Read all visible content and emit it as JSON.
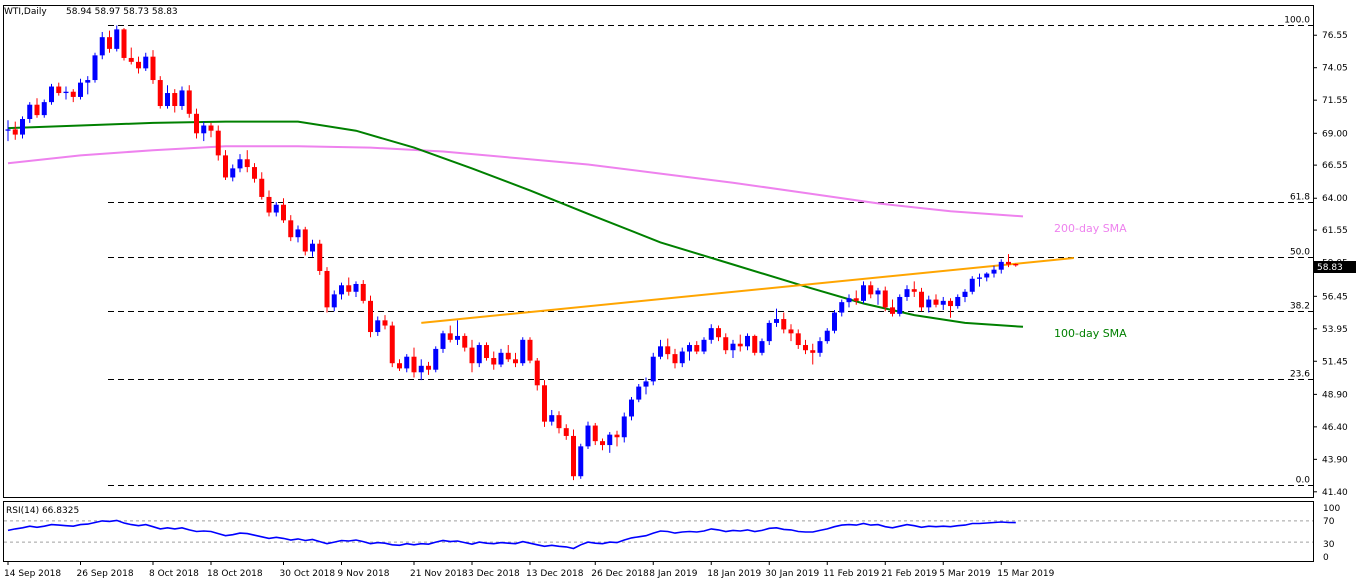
{
  "header": {
    "symbol": "WTI,Daily",
    "ohlc": "58.94 58.97 58.73 58.83"
  },
  "current_price": "58.83",
  "rsi_panel": {
    "title": "RSI(14) 66.8325",
    "levels": [
      100,
      70,
      30,
      0
    ],
    "level_labels": [
      "100",
      "70",
      "30",
      "0"
    ]
  },
  "fib_labels": {
    "f100": "100.0",
    "f618": "61.8",
    "f500": "50.0",
    "f382": "38.2",
    "f236": "23.6",
    "f000": "0.0"
  },
  "sma_labels": {
    "sma200": "200-day SMA",
    "sma100": "100-day SMA"
  },
  "chart_data": {
    "type": "candlestick",
    "price_axis_ticks": [
      76.55,
      74.05,
      71.55,
      69.0,
      66.55,
      64.0,
      61.55,
      59.05,
      56.45,
      53.95,
      51.45,
      48.9,
      46.4,
      43.9,
      41.4
    ],
    "price_axis_labels": [
      "76.55",
      "74.05",
      "71.55",
      "69.00",
      "66.55",
      "64.00",
      "61.55",
      "59.05",
      "56.45",
      "53.95",
      "51.45",
      "48.90",
      "46.40",
      "43.90",
      "41.40"
    ],
    "ylim": [
      41.0,
      78.8
    ],
    "date_labels": [
      {
        "i": 0,
        "label": "14 Sep 2018"
      },
      {
        "i": 10,
        "label": "26 Sep 2018"
      },
      {
        "i": 20,
        "label": "8 Oct 2018"
      },
      {
        "i": 28,
        "label": "18 Oct 2018"
      },
      {
        "i": 38,
        "label": "30 Oct 2018"
      },
      {
        "i": 46,
        "label": "9 Nov 2018"
      },
      {
        "i": 56,
        "label": "21 Nov 2018"
      },
      {
        "i": 64,
        "label": "3 Dec 2018"
      },
      {
        "i": 72,
        "label": "13 Dec 2018"
      },
      {
        "i": 81,
        "label": "26 Dec 2018"
      },
      {
        "i": 89,
        "label": "8 Jan 2019"
      },
      {
        "i": 97,
        "label": "18 Jan 2019"
      },
      {
        "i": 105,
        "label": "30 Jan 2019"
      },
      {
        "i": 113,
        "label": "11 Feb 2019"
      },
      {
        "i": 121,
        "label": "21 Feb 2019"
      },
      {
        "i": 129,
        "label": "5 Mar 2019"
      },
      {
        "i": 137,
        "label": "15 Mar 2019"
      }
    ],
    "candles": [
      [
        69.2,
        70.0,
        68.4,
        69.3
      ],
      [
        69.3,
        69.9,
        68.5,
        68.9
      ],
      [
        68.9,
        70.3,
        68.6,
        70.1
      ],
      [
        70.1,
        71.4,
        69.8,
        71.2
      ],
      [
        71.2,
        71.7,
        70.2,
        70.4
      ],
      [
        70.4,
        71.6,
        70.2,
        71.4
      ],
      [
        71.4,
        72.8,
        71.2,
        72.6
      ],
      [
        72.6,
        72.9,
        71.9,
        72.1
      ],
      [
        72.1,
        72.6,
        71.6,
        72.2
      ],
      [
        72.2,
        72.4,
        71.4,
        71.8
      ],
      [
        71.8,
        73.2,
        71.6,
        72.9
      ],
      [
        72.9,
        73.4,
        72.0,
        73.1
      ],
      [
        73.1,
        75.2,
        72.9,
        75.0
      ],
      [
        75.0,
        76.8,
        74.7,
        76.4
      ],
      [
        76.4,
        76.9,
        75.2,
        75.5
      ],
      [
        75.5,
        77.3,
        75.3,
        77.0
      ],
      [
        77.0,
        77.1,
        74.6,
        74.8
      ],
      [
        74.8,
        75.6,
        74.3,
        74.5
      ],
      [
        74.5,
        74.9,
        73.6,
        74.0
      ],
      [
        74.0,
        75.2,
        73.8,
        74.9
      ],
      [
        74.9,
        75.4,
        72.8,
        73.1
      ],
      [
        73.1,
        73.4,
        70.9,
        71.1
      ],
      [
        71.1,
        72.7,
        70.9,
        72.1
      ],
      [
        72.1,
        72.4,
        70.6,
        71.1
      ],
      [
        71.1,
        72.6,
        70.8,
        72.3
      ],
      [
        72.3,
        72.7,
        70.2,
        70.5
      ],
      [
        70.5,
        70.9,
        68.6,
        69.0
      ],
      [
        69.0,
        69.9,
        68.4,
        69.6
      ],
      [
        69.6,
        69.8,
        68.7,
        69.2
      ],
      [
        69.2,
        69.6,
        66.9,
        67.3
      ],
      [
        67.3,
        67.7,
        65.4,
        65.6
      ],
      [
        65.6,
        66.6,
        65.3,
        66.3
      ],
      [
        66.3,
        67.4,
        66.0,
        67.0
      ],
      [
        67.0,
        67.7,
        66.0,
        66.4
      ],
      [
        66.4,
        66.7,
        65.2,
        65.5
      ],
      [
        65.5,
        66.0,
        63.9,
        64.1
      ],
      [
        64.1,
        64.6,
        62.6,
        62.9
      ],
      [
        62.9,
        63.7,
        62.6,
        63.5
      ],
      [
        63.5,
        64.0,
        62.1,
        62.3
      ],
      [
        62.3,
        62.7,
        60.7,
        61.0
      ],
      [
        61.0,
        61.9,
        60.6,
        61.6
      ],
      [
        61.6,
        61.8,
        59.6,
        59.9
      ],
      [
        59.9,
        60.8,
        59.5,
        60.5
      ],
      [
        60.5,
        60.8,
        58.1,
        58.4
      ],
      [
        58.4,
        58.7,
        55.2,
        55.6
      ],
      [
        55.6,
        56.9,
        55.3,
        56.6
      ],
      [
        56.6,
        57.5,
        56.2,
        57.3
      ],
      [
        57.3,
        57.9,
        56.5,
        56.8
      ],
      [
        56.8,
        57.6,
        56.4,
        57.4
      ],
      [
        57.4,
        57.7,
        55.9,
        56.1
      ],
      [
        56.1,
        56.5,
        53.3,
        53.7
      ],
      [
        53.7,
        54.9,
        53.4,
        54.6
      ],
      [
        54.6,
        55.0,
        53.9,
        54.2
      ],
      [
        54.2,
        54.5,
        51.0,
        51.3
      ],
      [
        51.3,
        51.6,
        50.7,
        50.9
      ],
      [
        50.9,
        52.0,
        50.6,
        51.8
      ],
      [
        51.8,
        52.5,
        50.2,
        50.6
      ],
      [
        50.6,
        51.6,
        50.0,
        51.1
      ],
      [
        51.1,
        51.4,
        50.4,
        50.8
      ],
      [
        50.8,
        52.6,
        50.6,
        52.4
      ],
      [
        52.4,
        53.8,
        52.1,
        53.6
      ],
      [
        53.6,
        54.2,
        52.9,
        53.1
      ],
      [
        53.1,
        54.6,
        52.7,
        53.4
      ],
      [
        53.4,
        53.6,
        52.2,
        52.5
      ],
      [
        52.5,
        53.1,
        50.6,
        51.3
      ],
      [
        51.3,
        52.9,
        51.0,
        52.7
      ],
      [
        52.7,
        52.9,
        51.5,
        51.7
      ],
      [
        51.7,
        52.2,
        50.8,
        51.2
      ],
      [
        51.2,
        52.4,
        51.0,
        52.1
      ],
      [
        52.1,
        52.7,
        51.4,
        51.6
      ],
      [
        51.6,
        52.1,
        51.0,
        51.3
      ],
      [
        51.3,
        53.3,
        51.1,
        53.1
      ],
      [
        53.1,
        53.3,
        51.3,
        51.5
      ],
      [
        51.5,
        51.7,
        49.2,
        49.6
      ],
      [
        49.6,
        50.0,
        46.4,
        46.8
      ],
      [
        46.8,
        47.7,
        46.5,
        47.3
      ],
      [
        47.3,
        47.6,
        45.9,
        46.3
      ],
      [
        46.3,
        46.6,
        45.4,
        45.7
      ],
      [
        45.7,
        46.2,
        42.3,
        42.6
      ],
      [
        42.6,
        45.1,
        42.4,
        44.9
      ],
      [
        44.9,
        46.8,
        44.7,
        46.5
      ],
      [
        46.5,
        46.7,
        45.0,
        45.3
      ],
      [
        45.3,
        45.5,
        44.6,
        45.0
      ],
      [
        45.0,
        46.0,
        44.4,
        45.8
      ],
      [
        45.8,
        46.1,
        44.9,
        45.6
      ],
      [
        45.6,
        47.5,
        45.2,
        47.2
      ],
      [
        47.2,
        48.7,
        46.9,
        48.5
      ],
      [
        48.5,
        49.7,
        48.3,
        49.5
      ],
      [
        49.5,
        50.2,
        48.9,
        49.9
      ],
      [
        49.9,
        52.1,
        49.6,
        51.8
      ],
      [
        51.8,
        53.1,
        51.6,
        52.6
      ],
      [
        52.6,
        53.2,
        51.6,
        52.0
      ],
      [
        52.0,
        52.4,
        50.9,
        51.3
      ],
      [
        51.3,
        52.5,
        51.0,
        52.2
      ],
      [
        52.2,
        52.9,
        51.5,
        52.7
      ],
      [
        52.7,
        53.0,
        52.0,
        52.2
      ],
      [
        52.2,
        53.3,
        52.0,
        53.1
      ],
      [
        53.1,
        54.3,
        52.8,
        54.0
      ],
      [
        54.0,
        54.2,
        53.0,
        53.3
      ],
      [
        53.3,
        53.6,
        52.0,
        52.3
      ],
      [
        52.3,
        53.1,
        51.7,
        52.8
      ],
      [
        52.8,
        53.5,
        52.2,
        52.6
      ],
      [
        52.6,
        53.6,
        52.3,
        53.4
      ],
      [
        53.4,
        53.5,
        51.9,
        52.1
      ],
      [
        52.1,
        53.2,
        51.9,
        53.0
      ],
      [
        53.0,
        54.6,
        52.7,
        54.4
      ],
      [
        54.4,
        55.5,
        54.1,
        54.7
      ],
      [
        54.7,
        55.2,
        53.6,
        53.9
      ],
      [
        53.9,
        54.3,
        53.0,
        53.6
      ],
      [
        53.6,
        53.9,
        52.4,
        52.7
      ],
      [
        52.7,
        53.1,
        52.0,
        52.3
      ],
      [
        52.3,
        52.8,
        51.2,
        52.1
      ],
      [
        52.1,
        53.3,
        51.8,
        53.0
      ],
      [
        53.0,
        54.0,
        52.8,
        53.8
      ],
      [
        53.8,
        55.4,
        53.6,
        55.2
      ],
      [
        55.2,
        56.2,
        54.9,
        56.0
      ],
      [
        56.0,
        56.6,
        55.6,
        56.3
      ],
      [
        56.3,
        56.9,
        55.8,
        56.1
      ],
      [
        56.1,
        57.6,
        55.9,
        57.3
      ],
      [
        57.3,
        57.6,
        56.3,
        56.6
      ],
      [
        56.6,
        57.1,
        55.8,
        56.9
      ],
      [
        56.9,
        57.2,
        55.3,
        55.6
      ],
      [
        55.6,
        56.2,
        54.9,
        55.1
      ],
      [
        55.1,
        56.6,
        54.9,
        56.4
      ],
      [
        56.4,
        57.3,
        56.1,
        57.0
      ],
      [
        57.0,
        57.6,
        56.4,
        56.8
      ],
      [
        56.8,
        57.1,
        55.3,
        55.6
      ],
      [
        55.6,
        56.5,
        55.2,
        56.2
      ],
      [
        56.2,
        56.6,
        55.6,
        55.8
      ],
      [
        55.8,
        56.4,
        55.4,
        56.1
      ],
      [
        56.1,
        56.3,
        54.8,
        55.7
      ],
      [
        55.7,
        56.6,
        55.5,
        56.4
      ],
      [
        56.4,
        57.0,
        56.0,
        56.8
      ],
      [
        56.8,
        58.0,
        56.6,
        57.8
      ],
      [
        57.8,
        58.2,
        57.2,
        57.9
      ],
      [
        57.9,
        58.3,
        57.6,
        58.2
      ],
      [
        58.2,
        58.8,
        57.9,
        58.5
      ],
      [
        58.5,
        59.3,
        58.2,
        59.1
      ],
      [
        59.1,
        59.7,
        58.7,
        58.9
      ],
      [
        58.94,
        58.97,
        58.73,
        58.83
      ]
    ],
    "fibonacci": {
      "levels": [
        {
          "label": "100.0",
          "price": 77.3
        },
        {
          "label": "61.8",
          "price": 63.7
        },
        {
          "label": "50.0",
          "price": 59.5
        },
        {
          "label": "38.2",
          "price": 55.3
        },
        {
          "label": "23.6",
          "price": 50.1
        },
        {
          "label": "0.0",
          "price": 41.9
        }
      ]
    },
    "series": [
      {
        "name": "200-day SMA",
        "color": "#ee82ee",
        "points": [
          [
            0,
            66.7
          ],
          [
            10,
            67.3
          ],
          [
            20,
            67.7
          ],
          [
            30,
            68.0
          ],
          [
            40,
            68.0
          ],
          [
            50,
            67.9
          ],
          [
            60,
            67.6
          ],
          [
            70,
            67.1
          ],
          [
            80,
            66.6
          ],
          [
            90,
            65.9
          ],
          [
            100,
            65.2
          ],
          [
            110,
            64.4
          ],
          [
            120,
            63.6
          ],
          [
            130,
            63.0
          ],
          [
            140,
            62.6
          ]
        ]
      },
      {
        "name": "100-day SMA",
        "color": "#008000",
        "points": [
          [
            0,
            69.4
          ],
          [
            10,
            69.6
          ],
          [
            20,
            69.8
          ],
          [
            30,
            69.9
          ],
          [
            40,
            69.9
          ],
          [
            48,
            69.2
          ],
          [
            56,
            67.9
          ],
          [
            64,
            66.3
          ],
          [
            72,
            64.6
          ],
          [
            80,
            62.8
          ],
          [
            90,
            60.6
          ],
          [
            100,
            58.9
          ],
          [
            110,
            57.2
          ],
          [
            118,
            55.9
          ],
          [
            125,
            55.0
          ],
          [
            132,
            54.4
          ],
          [
            140,
            54.1
          ]
        ]
      },
      {
        "name": "trendline",
        "color": "#ffa500",
        "points": [
          [
            57,
            54.4
          ],
          [
            147,
            59.4
          ]
        ]
      }
    ],
    "rsi": {
      "values": [
        52,
        55,
        57,
        60,
        58,
        60,
        63,
        62,
        61,
        60,
        63,
        64,
        67,
        70,
        69,
        71,
        66,
        63,
        61,
        63,
        59,
        55,
        57,
        55,
        57,
        53,
        50,
        51,
        50,
        46,
        42,
        44,
        47,
        46,
        43,
        40,
        37,
        39,
        37,
        34,
        36,
        33,
        35,
        31,
        27,
        30,
        33,
        32,
        34,
        31,
        27,
        29,
        28,
        25,
        24,
        27,
        25,
        27,
        26,
        30,
        33,
        31,
        32,
        29,
        26,
        30,
        28,
        27,
        29,
        28,
        27,
        31,
        28,
        25,
        22,
        24,
        22,
        21,
        18,
        25,
        30,
        28,
        27,
        30,
        29,
        34,
        38,
        40,
        42,
        47,
        51,
        50,
        47,
        49,
        50,
        49,
        51,
        55,
        53,
        50,
        52,
        51,
        53,
        50,
        52,
        56,
        57,
        54,
        53,
        50,
        49,
        49,
        52,
        55,
        59,
        62,
        63,
        62,
        65,
        62,
        63,
        59,
        57,
        60,
        63,
        61,
        58,
        60,
        59,
        60,
        59,
        61,
        62,
        65,
        65,
        66,
        67,
        68,
        67,
        66.8
      ]
    }
  }
}
